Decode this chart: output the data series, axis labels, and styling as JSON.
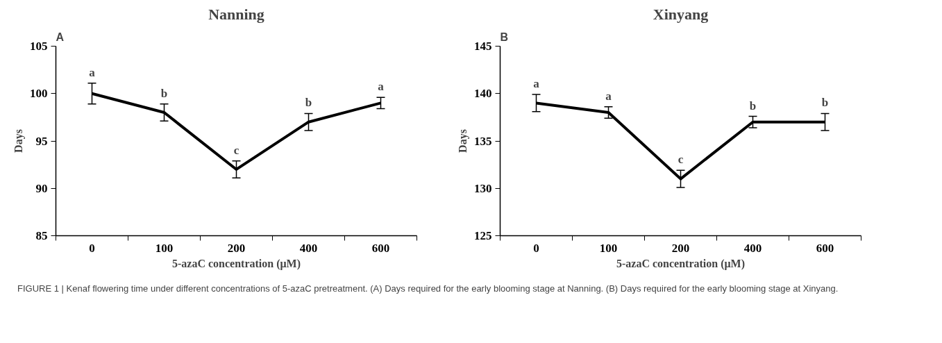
{
  "chart_data": [
    {
      "type": "line",
      "title": "Nanning",
      "xlabel": "5-azaC concentration (μM)",
      "ylabel": "Days",
      "categories": [
        "0",
        "100",
        "200",
        "400",
        "600"
      ],
      "series": [
        {
          "color": "#000000",
          "values": [
            100,
            98,
            92,
            97,
            99
          ],
          "errors": [
            1.1,
            0.9,
            0.9,
            0.9,
            0.6
          ]
        }
      ],
      "ylim": [
        85,
        105
      ],
      "yticks": [
        85,
        90,
        95,
        100,
        105
      ],
      "marker": "none",
      "line_style": "solid",
      "annotations": [
        "A",
        "a",
        "b",
        "c",
        "b",
        "a",
        "FIGURE 1 | Kenaf flowering time under different concentrations of 5-azaC pretreatment. (A) Days required for the early blooming stage at Nanning. (B) Days required for the early blooming stage at Xinyang."
      ]
    },
    {
      "type": "line",
      "title": "Xinyang",
      "xlabel": "5-azaC concentration (μM)",
      "ylabel": "Days",
      "categories": [
        "0",
        "100",
        "200",
        "400",
        "600"
      ],
      "series": [
        {
          "color": "#000000",
          "values": [
            139,
            138,
            131,
            137,
            137
          ],
          "errors": [
            0.9,
            0.6,
            0.9,
            0.6,
            0.9
          ]
        }
      ],
      "ylim": [
        125,
        145
      ],
      "yticks": [
        125,
        130,
        135,
        140,
        145
      ],
      "marker": "none",
      "line_style": "solid",
      "annotations": [
        "B",
        "a",
        "a",
        "c",
        "b",
        "b"
      ]
    }
  ]
}
